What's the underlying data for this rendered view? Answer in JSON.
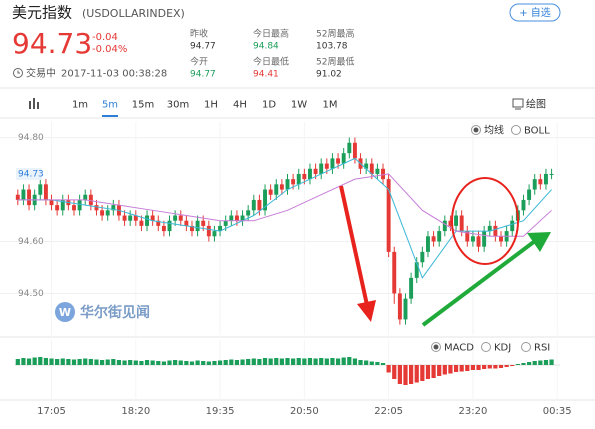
{
  "header": {
    "name": "美元指数",
    "code": "(USDOLLARINDEX)",
    "add_button": "+ 自选",
    "price": 94.73,
    "change": -0.04,
    "change_pct": "-0.04%",
    "status": "交易中",
    "timestamp": "2017-11-03 00:38:28"
  },
  "stats": [
    {
      "label": "昨收",
      "value": 94.77,
      "color": "#333333"
    },
    {
      "label": "今日最高",
      "value": 94.84,
      "color": "#1a9e5a"
    },
    {
      "label": "52周最高",
      "value": 103.78,
      "color": "#333333"
    },
    {
      "label": "今开",
      "value": 94.77,
      "color": "#1a9e5a"
    },
    {
      "label": "今日最低",
      "value": 94.41,
      "color": "#e53935"
    },
    {
      "label": "52周最低",
      "value": 91.02,
      "color": "#333333"
    }
  ],
  "tabs": [
    "1m",
    "5m",
    "15m",
    "30m",
    "1H",
    "4H",
    "1D",
    "1W",
    "1M"
  ],
  "active_tab": "5m",
  "draw_button": "绘图",
  "watermark": "华尔街见闻",
  "chart_data": [
    {
      "type": "candlestick",
      "up_color": "#1a9e5a",
      "down_color": "#e53935",
      "options": [
        "均线",
        "BOLL"
      ],
      "selected": "均线",
      "ylim": [
        94.42,
        94.83
      ],
      "xlim": [
        -0.5,
        96.5
      ],
      "yticks": [
        {
          "value": 94.8,
          "label": "94.80"
        },
        {
          "value": 94.6,
          "label": "94.60"
        },
        {
          "value": 94.5,
          "label": "94.50"
        }
      ],
      "last_price": {
        "value": 94.73,
        "label": "94.73"
      },
      "xticks": [
        6,
        21,
        36,
        51,
        66,
        81,
        96
      ],
      "candles": [
        [
          94.69,
          94.7,
          94.67,
          94.68
        ],
        [
          94.68,
          94.71,
          94.67,
          94.7
        ],
        [
          94.7,
          94.71,
          94.66,
          94.67
        ],
        [
          94.67,
          94.7,
          94.66,
          94.69
        ],
        [
          94.69,
          94.72,
          94.68,
          94.71
        ],
        [
          94.71,
          94.72,
          94.67,
          94.68
        ],
        [
          94.68,
          94.69,
          94.66,
          94.67
        ],
        [
          94.67,
          94.68,
          94.65,
          94.66
        ],
        [
          94.66,
          94.69,
          94.65,
          94.68
        ],
        [
          94.68,
          94.69,
          94.66,
          94.67
        ],
        [
          94.67,
          94.68,
          94.65,
          94.66
        ],
        [
          94.66,
          94.69,
          94.65,
          94.68
        ],
        [
          94.68,
          94.7,
          94.67,
          94.69
        ],
        [
          94.69,
          94.7,
          94.66,
          94.67
        ],
        [
          94.67,
          94.68,
          94.65,
          94.66
        ],
        [
          94.66,
          94.67,
          94.64,
          94.65
        ],
        [
          94.65,
          94.67,
          94.64,
          94.66
        ],
        [
          94.66,
          94.68,
          94.65,
          94.67
        ],
        [
          94.67,
          94.68,
          94.64,
          94.65
        ],
        [
          94.65,
          94.66,
          94.63,
          94.64
        ],
        [
          94.64,
          94.66,
          94.63,
          94.65
        ],
        [
          94.65,
          94.66,
          94.63,
          94.64
        ],
        [
          94.64,
          94.65,
          94.62,
          94.63
        ],
        [
          94.63,
          94.66,
          94.62,
          94.65
        ],
        [
          94.65,
          94.66,
          94.63,
          94.64
        ],
        [
          94.64,
          94.65,
          94.62,
          94.63
        ],
        [
          94.63,
          94.64,
          94.61,
          94.62
        ],
        [
          94.62,
          94.65,
          94.61,
          94.64
        ],
        [
          94.64,
          94.66,
          94.63,
          94.65
        ],
        [
          94.65,
          94.66,
          94.63,
          94.64
        ],
        [
          94.64,
          94.65,
          94.62,
          94.63
        ],
        [
          94.63,
          94.64,
          94.61,
          94.62
        ],
        [
          94.62,
          94.65,
          94.61,
          94.64
        ],
        [
          94.64,
          94.65,
          94.62,
          94.63
        ],
        [
          94.63,
          94.64,
          94.6,
          94.61
        ],
        [
          94.61,
          94.63,
          94.6,
          94.62
        ],
        [
          94.62,
          94.64,
          94.61,
          94.63
        ],
        [
          94.63,
          94.65,
          94.62,
          94.64
        ],
        [
          94.64,
          94.66,
          94.63,
          94.65
        ],
        [
          94.65,
          94.66,
          94.63,
          94.64
        ],
        [
          94.64,
          94.66,
          94.63,
          94.65
        ],
        [
          94.65,
          94.67,
          94.64,
          94.66
        ],
        [
          94.66,
          94.69,
          94.65,
          94.68
        ],
        [
          94.68,
          94.69,
          94.65,
          94.66
        ],
        [
          94.66,
          94.71,
          94.65,
          94.7
        ],
        [
          94.7,
          94.71,
          94.68,
          94.69
        ],
        [
          94.69,
          94.72,
          94.68,
          94.71
        ],
        [
          94.71,
          94.72,
          94.69,
          94.7
        ],
        [
          94.7,
          94.73,
          94.69,
          94.72
        ],
        [
          94.72,
          94.73,
          94.7,
          94.71
        ],
        [
          94.71,
          94.74,
          94.7,
          94.73
        ],
        [
          94.73,
          94.74,
          94.71,
          94.72
        ],
        [
          94.72,
          94.75,
          94.71,
          94.74
        ],
        [
          94.74,
          94.75,
          94.72,
          94.73
        ],
        [
          94.73,
          94.76,
          94.72,
          94.75
        ],
        [
          94.75,
          94.76,
          94.73,
          94.74
        ],
        [
          94.74,
          94.77,
          94.73,
          94.76
        ],
        [
          94.76,
          94.77,
          94.74,
          94.75
        ],
        [
          94.75,
          94.78,
          94.74,
          94.77
        ],
        [
          94.77,
          94.8,
          94.76,
          94.79
        ],
        [
          94.79,
          94.8,
          94.75,
          94.76
        ],
        [
          94.76,
          94.77,
          94.73,
          94.74
        ],
        [
          94.74,
          94.76,
          94.73,
          94.75
        ],
        [
          94.75,
          94.76,
          94.72,
          94.73
        ],
        [
          94.73,
          94.75,
          94.72,
          94.74
        ],
        [
          94.74,
          94.75,
          94.71,
          94.72
        ],
        [
          94.72,
          94.73,
          94.57,
          94.58
        ],
        [
          94.58,
          94.59,
          94.48,
          94.5
        ],
        [
          94.5,
          94.51,
          94.44,
          94.45
        ],
        [
          94.45,
          94.5,
          94.44,
          94.49
        ],
        [
          94.49,
          94.54,
          94.48,
          94.53
        ],
        [
          94.53,
          94.57,
          94.52,
          94.56
        ],
        [
          94.56,
          94.59,
          94.55,
          94.58
        ],
        [
          94.58,
          94.62,
          94.57,
          94.61
        ],
        [
          94.61,
          94.62,
          94.59,
          94.6
        ],
        [
          94.6,
          94.63,
          94.59,
          94.62
        ],
        [
          94.62,
          94.65,
          94.61,
          94.64
        ],
        [
          94.64,
          94.65,
          94.62,
          94.63
        ],
        [
          94.63,
          94.66,
          94.62,
          94.65
        ],
        [
          94.65,
          94.66,
          94.61,
          94.62
        ],
        [
          94.62,
          94.63,
          94.59,
          94.6
        ],
        [
          94.6,
          94.62,
          94.59,
          94.61
        ],
        [
          94.61,
          94.62,
          94.58,
          94.59
        ],
        [
          94.59,
          94.63,
          94.58,
          94.62
        ],
        [
          94.62,
          94.64,
          94.61,
          94.63
        ],
        [
          94.63,
          94.64,
          94.6,
          94.61
        ],
        [
          94.61,
          94.62,
          94.59,
          94.6
        ],
        [
          94.6,
          94.63,
          94.59,
          94.62
        ],
        [
          94.62,
          94.65,
          94.61,
          94.64
        ],
        [
          94.64,
          94.67,
          94.63,
          94.66
        ],
        [
          94.66,
          94.69,
          94.65,
          94.68
        ],
        [
          94.68,
          94.71,
          94.67,
          94.7
        ],
        [
          94.7,
          94.73,
          94.69,
          94.72
        ],
        [
          94.72,
          94.73,
          94.7,
          94.71
        ],
        [
          94.71,
          94.74,
          94.7,
          94.73
        ],
        [
          94.73,
          94.74,
          94.72,
          94.73
        ]
      ],
      "lines": [
        {
          "color": "#39b8d6",
          "x": [
            0,
            6,
            12,
            18,
            24,
            30,
            36,
            42,
            48,
            54,
            60,
            66,
            72,
            78,
            84,
            90,
            95
          ],
          "values": [
            94.68,
            94.68,
            94.67,
            94.66,
            94.64,
            94.63,
            94.62,
            94.65,
            94.7,
            94.73,
            94.76,
            94.7,
            94.53,
            94.62,
            94.62,
            94.64,
            94.7
          ]
        },
        {
          "color": "#c77dd8",
          "x": [
            0,
            6,
            12,
            18,
            24,
            30,
            36,
            42,
            48,
            54,
            60,
            66,
            72,
            78,
            84,
            90,
            95
          ],
          "values": [
            94.68,
            94.68,
            94.68,
            94.67,
            94.66,
            94.65,
            94.64,
            94.64,
            94.66,
            94.69,
            94.72,
            94.73,
            94.66,
            94.62,
            94.61,
            94.61,
            94.66
          ]
        }
      ]
    },
    {
      "type": "bar",
      "up_color": "#1a9e5a",
      "down_color": "#e53935",
      "options": [
        "MACD",
        "KDJ",
        "RSI"
      ],
      "selected": "MACD",
      "ylim": [
        -0.05,
        0.03
      ],
      "xlim": [
        -0.5,
        96.5
      ],
      "xticks": [
        {
          "value": 6,
          "label": "17:05"
        },
        {
          "value": 21,
          "label": "18:20"
        },
        {
          "value": 36,
          "label": "19:35"
        },
        {
          "value": 51,
          "label": "20:50"
        },
        {
          "value": 66,
          "label": "22:05"
        },
        {
          "value": 81,
          "label": "23:20"
        },
        {
          "value": 96,
          "label": "00:35"
        }
      ],
      "values": [
        0.012,
        0.014,
        0.013,
        0.015,
        0.016,
        0.014,
        0.013,
        0.012,
        0.013,
        0.012,
        0.011,
        0.012,
        0.013,
        0.012,
        0.011,
        0.01,
        0.011,
        0.012,
        0.01,
        0.009,
        0.01,
        0.009,
        0.008,
        0.01,
        0.009,
        0.008,
        0.007,
        0.009,
        0.01,
        0.009,
        0.008,
        0.007,
        0.009,
        0.008,
        0.007,
        0.008,
        0.009,
        0.01,
        0.011,
        0.01,
        0.011,
        0.012,
        0.013,
        0.012,
        0.014,
        0.013,
        0.014,
        0.013,
        0.014,
        0.013,
        0.014,
        0.013,
        0.014,
        0.013,
        0.014,
        0.013,
        0.014,
        0.013,
        0.015,
        0.016,
        0.013,
        0.01,
        0.009,
        0.007,
        0.006,
        0.004,
        -0.015,
        -0.028,
        -0.038,
        -0.04,
        -0.038,
        -0.035,
        -0.032,
        -0.028,
        -0.026,
        -0.022,
        -0.019,
        -0.017,
        -0.014,
        -0.013,
        -0.012,
        -0.01,
        -0.01,
        -0.008,
        -0.007,
        -0.007,
        -0.006,
        -0.004,
        -0.002,
        0.002,
        0.004,
        0.006,
        0.008,
        0.009,
        0.01,
        0.011
      ]
    }
  ]
}
